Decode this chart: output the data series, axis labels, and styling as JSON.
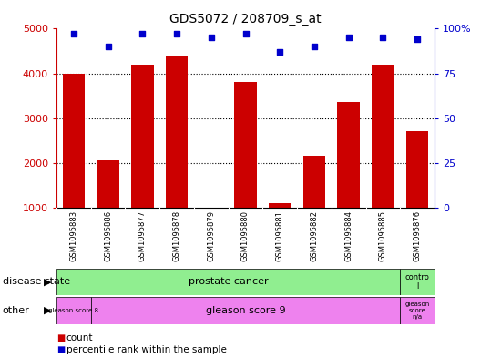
{
  "title": "GDS5072 / 208709_s_at",
  "samples": [
    "GSM1095883",
    "GSM1095886",
    "GSM1095877",
    "GSM1095878",
    "GSM1095879",
    "GSM1095880",
    "GSM1095881",
    "GSM1095882",
    "GSM1095884",
    "GSM1095885",
    "GSM1095876"
  ],
  "counts": [
    4000,
    2050,
    4200,
    4400,
    1000,
    3800,
    1100,
    2150,
    3350,
    4200,
    2700
  ],
  "percentile_ranks": [
    97,
    90,
    97,
    97,
    95,
    97,
    87,
    90,
    95,
    95,
    94
  ],
  "ylim_left": [
    1000,
    5000
  ],
  "ylim_right": [
    0,
    100
  ],
  "yticks_left": [
    1000,
    2000,
    3000,
    4000,
    5000
  ],
  "yticks_right": [
    0,
    25,
    50,
    75,
    100
  ],
  "bar_color": "#cc0000",
  "dot_color": "#0000cc",
  "bg_color": "#ffffff",
  "grid_color": "#000000",
  "tick_area_color": "#d3d3d3",
  "prostate_color": "#90ee90",
  "gleason_color": "#ee82ee"
}
